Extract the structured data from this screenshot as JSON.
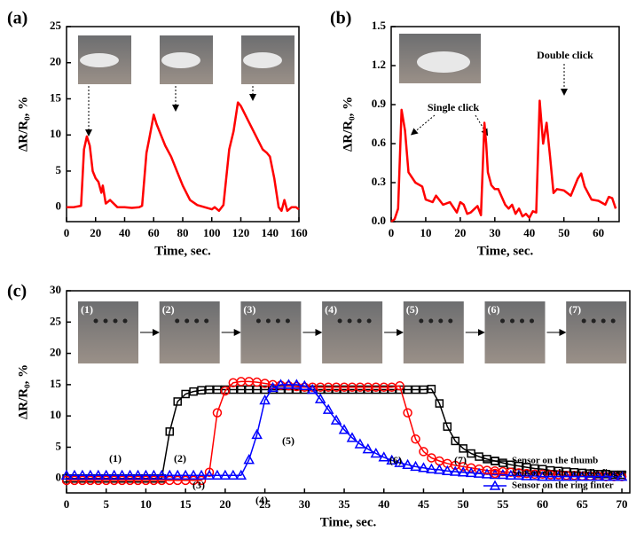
{
  "chart_data": [
    {
      "type": "line",
      "panel_label": "(a)",
      "x_label": "Time, sec.",
      "y_label": "ΔR/R₀, %",
      "xlim": [
        0,
        160
      ],
      "xticks": [
        0,
        20,
        40,
        60,
        80,
        100,
        120,
        140,
        160
      ],
      "ylim": [
        -2,
        25
      ],
      "yticks": [
        0,
        5,
        10,
        15,
        20,
        25
      ],
      "series": [
        {
          "color": "#ff0000",
          "x": [
            0,
            5,
            10,
            12,
            14,
            16,
            18,
            20,
            22,
            24,
            25,
            27,
            30,
            35,
            40,
            45,
            50,
            52,
            55,
            57,
            60,
            62,
            65,
            68,
            72,
            76,
            80,
            85,
            90,
            95,
            100,
            102,
            105,
            108,
            112,
            115,
            118,
            120,
            125,
            130,
            135,
            138,
            140,
            143,
            146,
            148,
            150,
            152,
            155,
            158,
            160
          ],
          "values": [
            0,
            0,
            0.2,
            8,
            9.8,
            8.5,
            5,
            4,
            3.5,
            2,
            3,
            0.5,
            1,
            0,
            0,
            -0.1,
            0,
            0.2,
            7.5,
            9.5,
            12.8,
            11.5,
            10,
            8.5,
            7,
            5,
            3,
            1,
            0.3,
            0,
            -0.3,
            0,
            -0.5,
            0.3,
            8,
            10.5,
            14.5,
            14,
            12,
            10,
            8,
            7.5,
            7,
            4,
            0,
            -0.5,
            1,
            -0.5,
            0,
            0,
            -0.3
          ]
        }
      ]
    },
    {
      "type": "line",
      "panel_label": "(b)",
      "x_label": "Time, sec.",
      "y_label": "ΔR/R₀, %",
      "xlim": [
        0,
        66
      ],
      "xticks": [
        0,
        10,
        20,
        30,
        40,
        50,
        60
      ],
      "ylim": [
        0,
        1.5
      ],
      "yticks": [
        {
          "value": 0,
          "label": "0.0"
        },
        0.3,
        0.6,
        0.9,
        1.2,
        1.5
      ],
      "annotations": [
        "Single click",
        "Double click"
      ],
      "series": [
        {
          "color": "#ff0000",
          "x": [
            0,
            1,
            2,
            3,
            4,
            5,
            7,
            9,
            10,
            12,
            13,
            15,
            17,
            19,
            20,
            21,
            22,
            23,
            25,
            26,
            27,
            27.5,
            28,
            29,
            30,
            31,
            33,
            34,
            35,
            36,
            37,
            38,
            39,
            40,
            41,
            42,
            43,
            44,
            45,
            46,
            47,
            48,
            50,
            52,
            54,
            55,
            56,
            58,
            60,
            62,
            63,
            64,
            65
          ],
          "values": [
            0,
            0.02,
            0.1,
            0.86,
            0.7,
            0.38,
            0.3,
            0.27,
            0.17,
            0.15,
            0.2,
            0.13,
            0.15,
            0.07,
            0.15,
            0.13,
            0.06,
            0.07,
            0.12,
            0.05,
            0.76,
            0.6,
            0.38,
            0.28,
            0.25,
            0.25,
            0.13,
            0.1,
            0.13,
            0.06,
            0.1,
            0.04,
            0.06,
            0.03,
            0.08,
            0.07,
            0.93,
            0.6,
            0.76,
            0.5,
            0.22,
            0.25,
            0.24,
            0.2,
            0.33,
            0.37,
            0.27,
            0.17,
            0.16,
            0.13,
            0.19,
            0.18,
            0.1
          ]
        }
      ]
    },
    {
      "type": "line",
      "panel_label": "(c)",
      "x_label": "Time, sec.",
      "y_label": "ΔR/R₀, %",
      "xlim": [
        0,
        71
      ],
      "xticks": [
        0,
        5,
        10,
        15,
        20,
        25,
        30,
        35,
        40,
        45,
        50,
        55,
        60,
        65,
        70
      ],
      "ylim": [
        -2.3,
        30
      ],
      "yticks": [
        0,
        5,
        10,
        15,
        20,
        25,
        30
      ],
      "legend": "upper right",
      "photo_labels": [
        "(1)",
        "(2)",
        "(3)",
        "(4)",
        "(5)",
        "(6)",
        "(7)"
      ],
      "step_labels": [
        "(1)",
        "(2)",
        "(3)",
        "(4)",
        "(5)",
        "(6)",
        "(7)"
      ],
      "x": [
        0,
        1,
        2,
        3,
        4,
        5,
        6,
        7,
        8,
        9,
        10,
        11,
        12,
        13,
        14,
        15,
        16,
        17,
        18,
        19,
        20,
        21,
        22,
        23,
        24,
        25,
        26,
        27,
        28,
        29,
        30,
        31,
        32,
        33,
        34,
        35,
        36,
        37,
        38,
        39,
        40,
        41,
        42,
        43,
        44,
        45,
        46,
        47,
        48,
        49,
        50,
        51,
        52,
        53,
        54,
        55,
        56,
        57,
        58,
        59,
        60,
        61,
        62,
        63,
        64,
        65,
        66,
        67,
        68,
        69,
        70
      ],
      "series": [
        {
          "name": "Sensor on the thumb",
          "color": "#000000",
          "marker": "square",
          "values": [
            0,
            0,
            0,
            0,
            0,
            0,
            0,
            0,
            0,
            0,
            0,
            0,
            0,
            7.5,
            12.3,
            13.5,
            13.9,
            14.1,
            14.2,
            14.2,
            14.2,
            14.2,
            14.2,
            14.2,
            14.2,
            14.2,
            14.2,
            14.2,
            14.2,
            14.2,
            14.2,
            14.2,
            14.2,
            14.2,
            14.2,
            14.2,
            14.2,
            14.2,
            14.2,
            14.2,
            14.2,
            14.2,
            14.2,
            14.2,
            14.2,
            14.2,
            14.3,
            12,
            8.3,
            6,
            4.8,
            4,
            3.5,
            3.1,
            2.8,
            2.5,
            2.2,
            2,
            1.8,
            1.6,
            1.5,
            1.3,
            1.2,
            1.1,
            1,
            0.9,
            0.8,
            0.7,
            0.7,
            0.6,
            0.6
          ]
        },
        {
          "name": "Sensor on the middle finger",
          "color": "#ff0000",
          "marker": "circle",
          "values": [
            -0.3,
            -0.3,
            -0.3,
            -0.3,
            -0.3,
            -0.3,
            -0.3,
            -0.3,
            -0.3,
            -0.3,
            -0.3,
            -0.3,
            -0.3,
            -0.3,
            -0.3,
            -0.3,
            -0.3,
            -0.3,
            1,
            10.5,
            14,
            15.3,
            15.5,
            15.5,
            15.4,
            15.2,
            15,
            14.9,
            14.8,
            14.7,
            14.6,
            14.6,
            14.6,
            14.6,
            14.6,
            14.6,
            14.6,
            14.6,
            14.6,
            14.6,
            14.6,
            14.6,
            14.8,
            10.5,
            6.3,
            4.3,
            3.3,
            2.8,
            2.4,
            2.1,
            1.9,
            1.7,
            1.5,
            1.3,
            1.2,
            1.1,
            1,
            0.9,
            0.8,
            0.7,
            0.7,
            0.6,
            0.6,
            0.5,
            0.5,
            0.4,
            0.4,
            0.4,
            0.3,
            0.3,
            0.3
          ]
        },
        {
          "name": "Sensor on the ring finter",
          "color": "#0000ff",
          "marker": "triangle",
          "values": [
            0.5,
            0.5,
            0.5,
            0.5,
            0.5,
            0.5,
            0.5,
            0.5,
            0.5,
            0.5,
            0.5,
            0.5,
            0.5,
            0.5,
            0.5,
            0.5,
            0.5,
            0.5,
            0.5,
            0.5,
            0.5,
            0.5,
            0.5,
            3,
            7,
            12.5,
            14.5,
            15,
            15,
            15,
            14.8,
            14.2,
            12.7,
            11,
            9.3,
            7.8,
            6.5,
            5.5,
            4.7,
            4,
            3.4,
            2.9,
            2.5,
            2.2,
            1.9,
            1.7,
            1.5,
            1.4,
            1.2,
            1.1,
            1,
            0.9,
            0.8,
            0.7,
            0.6,
            0.6,
            0.5,
            0.5,
            0.4,
            0.4,
            0.3,
            0.3,
            0.3,
            0.3,
            0.3,
            0.3,
            0.3,
            0.3,
            0.3,
            0.3,
            0.3
          ]
        }
      ]
    }
  ]
}
